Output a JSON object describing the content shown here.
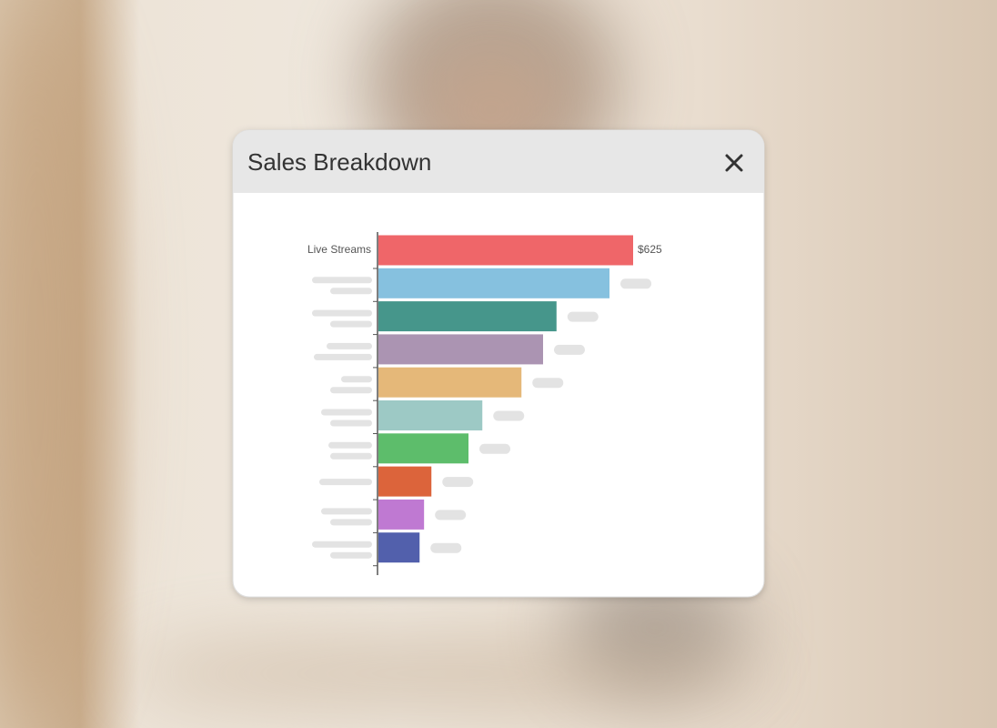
{
  "chart_data": {
    "type": "hbar",
    "title": "Sales Breakdown",
    "categories": [
      "Live Streams",
      null,
      null,
      null,
      null,
      null,
      null,
      null,
      null,
      null
    ],
    "values": [
      625,
      567,
      437,
      404,
      351,
      255,
      221,
      130,
      112,
      101
    ],
    "value_labels": [
      "$625",
      null,
      null,
      null,
      null,
      null,
      null,
      null,
      null,
      null
    ],
    "colors": [
      "#ef6669",
      "#86c1df",
      "#46968b",
      "#ab94b2",
      "#e5b879",
      "#9dc9c5",
      "#5dbd6b",
      "#dc643b",
      "#bf79d2",
      "#5260ac"
    ]
  }
}
